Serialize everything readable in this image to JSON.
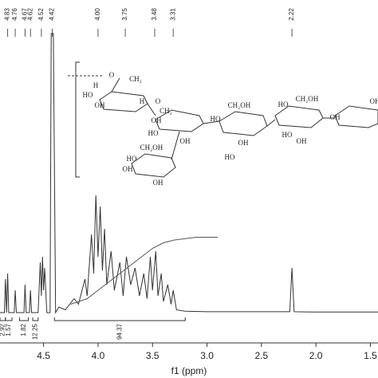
{
  "chart_data": {
    "type": "line",
    "x_label": "f1 (ppm)",
    "xlim": [
      4.9,
      1.43
    ],
    "ylim": [
      0,
      100
    ],
    "xticks": [
      4.5,
      {
        "value": 4,
        "label": "4.0"
      },
      3.5,
      {
        "value": 3,
        "label": "3.0"
      },
      2.5,
      {
        "value": 2,
        "label": "2.0"
      },
      1.5
    ],
    "peak_labels": [
      4.83,
      4.76,
      4.67,
      4.62,
      4.52,
      4.42,
      {
        "value": 4,
        "label": "4.00"
      },
      3.75,
      3.48,
      3.31,
      2.22
    ],
    "x": [
      4.9,
      4.86,
      4.85,
      4.84,
      4.83,
      4.82,
      4.77,
      4.76,
      4.75,
      4.68,
      4.67,
      4.66,
      4.63,
      4.62,
      4.61,
      4.55,
      4.53,
      4.52,
      4.51,
      4.5,
      4.49,
      4.47,
      4.44,
      4.43,
      4.41,
      4.39,
      4.36,
      4.3,
      4.22,
      4.18,
      4.12,
      4.1,
      4.06,
      4.04,
      4.02,
      4.0,
      3.98,
      3.96,
      3.94,
      3.92,
      3.88,
      3.85,
      3.8,
      3.77,
      3.74,
      3.7,
      3.66,
      3.62,
      3.58,
      3.55,
      3.52,
      3.5,
      3.47,
      3.45,
      3.42,
      3.4,
      3.36,
      3.33,
      3.31,
      3.28,
      3.2,
      3.0,
      2.5,
      2.24,
      2.22,
      2.2,
      2.0,
      1.5,
      1.43
    ],
    "series": [
      {
        "color": "#333333",
        "values": [
          0,
          0,
          12,
          0,
          14,
          0,
          0,
          8,
          0,
          0,
          10,
          0,
          0,
          8,
          0,
          0,
          18,
          6,
          20,
          8,
          16,
          0,
          0,
          100,
          100,
          0,
          2,
          1,
          5,
          3,
          12,
          6,
          28,
          14,
          42,
          20,
          38,
          15,
          30,
          10,
          22,
          8,
          18,
          6,
          20,
          10,
          16,
          6,
          14,
          5,
          20,
          8,
          22,
          6,
          14,
          4,
          10,
          3,
          8,
          1,
          0.5,
          0.3,
          0.3,
          0.3,
          16,
          0.3,
          0.2,
          0.2,
          0.2
        ]
      }
    ],
    "integral_curve": {
      "color": "#555555",
      "x": [
        4.25,
        4.1,
        4.0,
        3.9,
        3.8,
        3.7,
        3.6,
        3.5,
        3.4,
        3.3,
        3.1,
        2.9
      ],
      "values": [
        3,
        5,
        8,
        11,
        14,
        17,
        20,
        23,
        25,
        26,
        27,
        27
      ]
    },
    "integrals": [
      {
        "value": 2.92,
        "from": 4.9,
        "to": 4.85
      },
      {
        "value": 1.57,
        "from": 4.85,
        "to": 4.79
      },
      {
        "value": 1.82,
        "from": 4.72,
        "to": 4.64
      },
      {
        "value": 12.25,
        "from": 4.6,
        "to": 4.55
      },
      {
        "value": 94.37,
        "from": 4.4,
        "to": 3.2
      }
    ],
    "annotations": [
      "O",
      "CH₂",
      "H",
      "HO",
      "OH",
      "H",
      "O",
      "CH₂",
      "OH",
      "HO",
      "OH",
      "CH₂OH",
      "HO",
      "OH",
      "HO",
      "HO",
      "CH₂OH",
      "OH",
      "HO",
      "OH",
      "OH",
      "CH₂OH",
      "HO",
      "OH",
      "OH"
    ]
  }
}
